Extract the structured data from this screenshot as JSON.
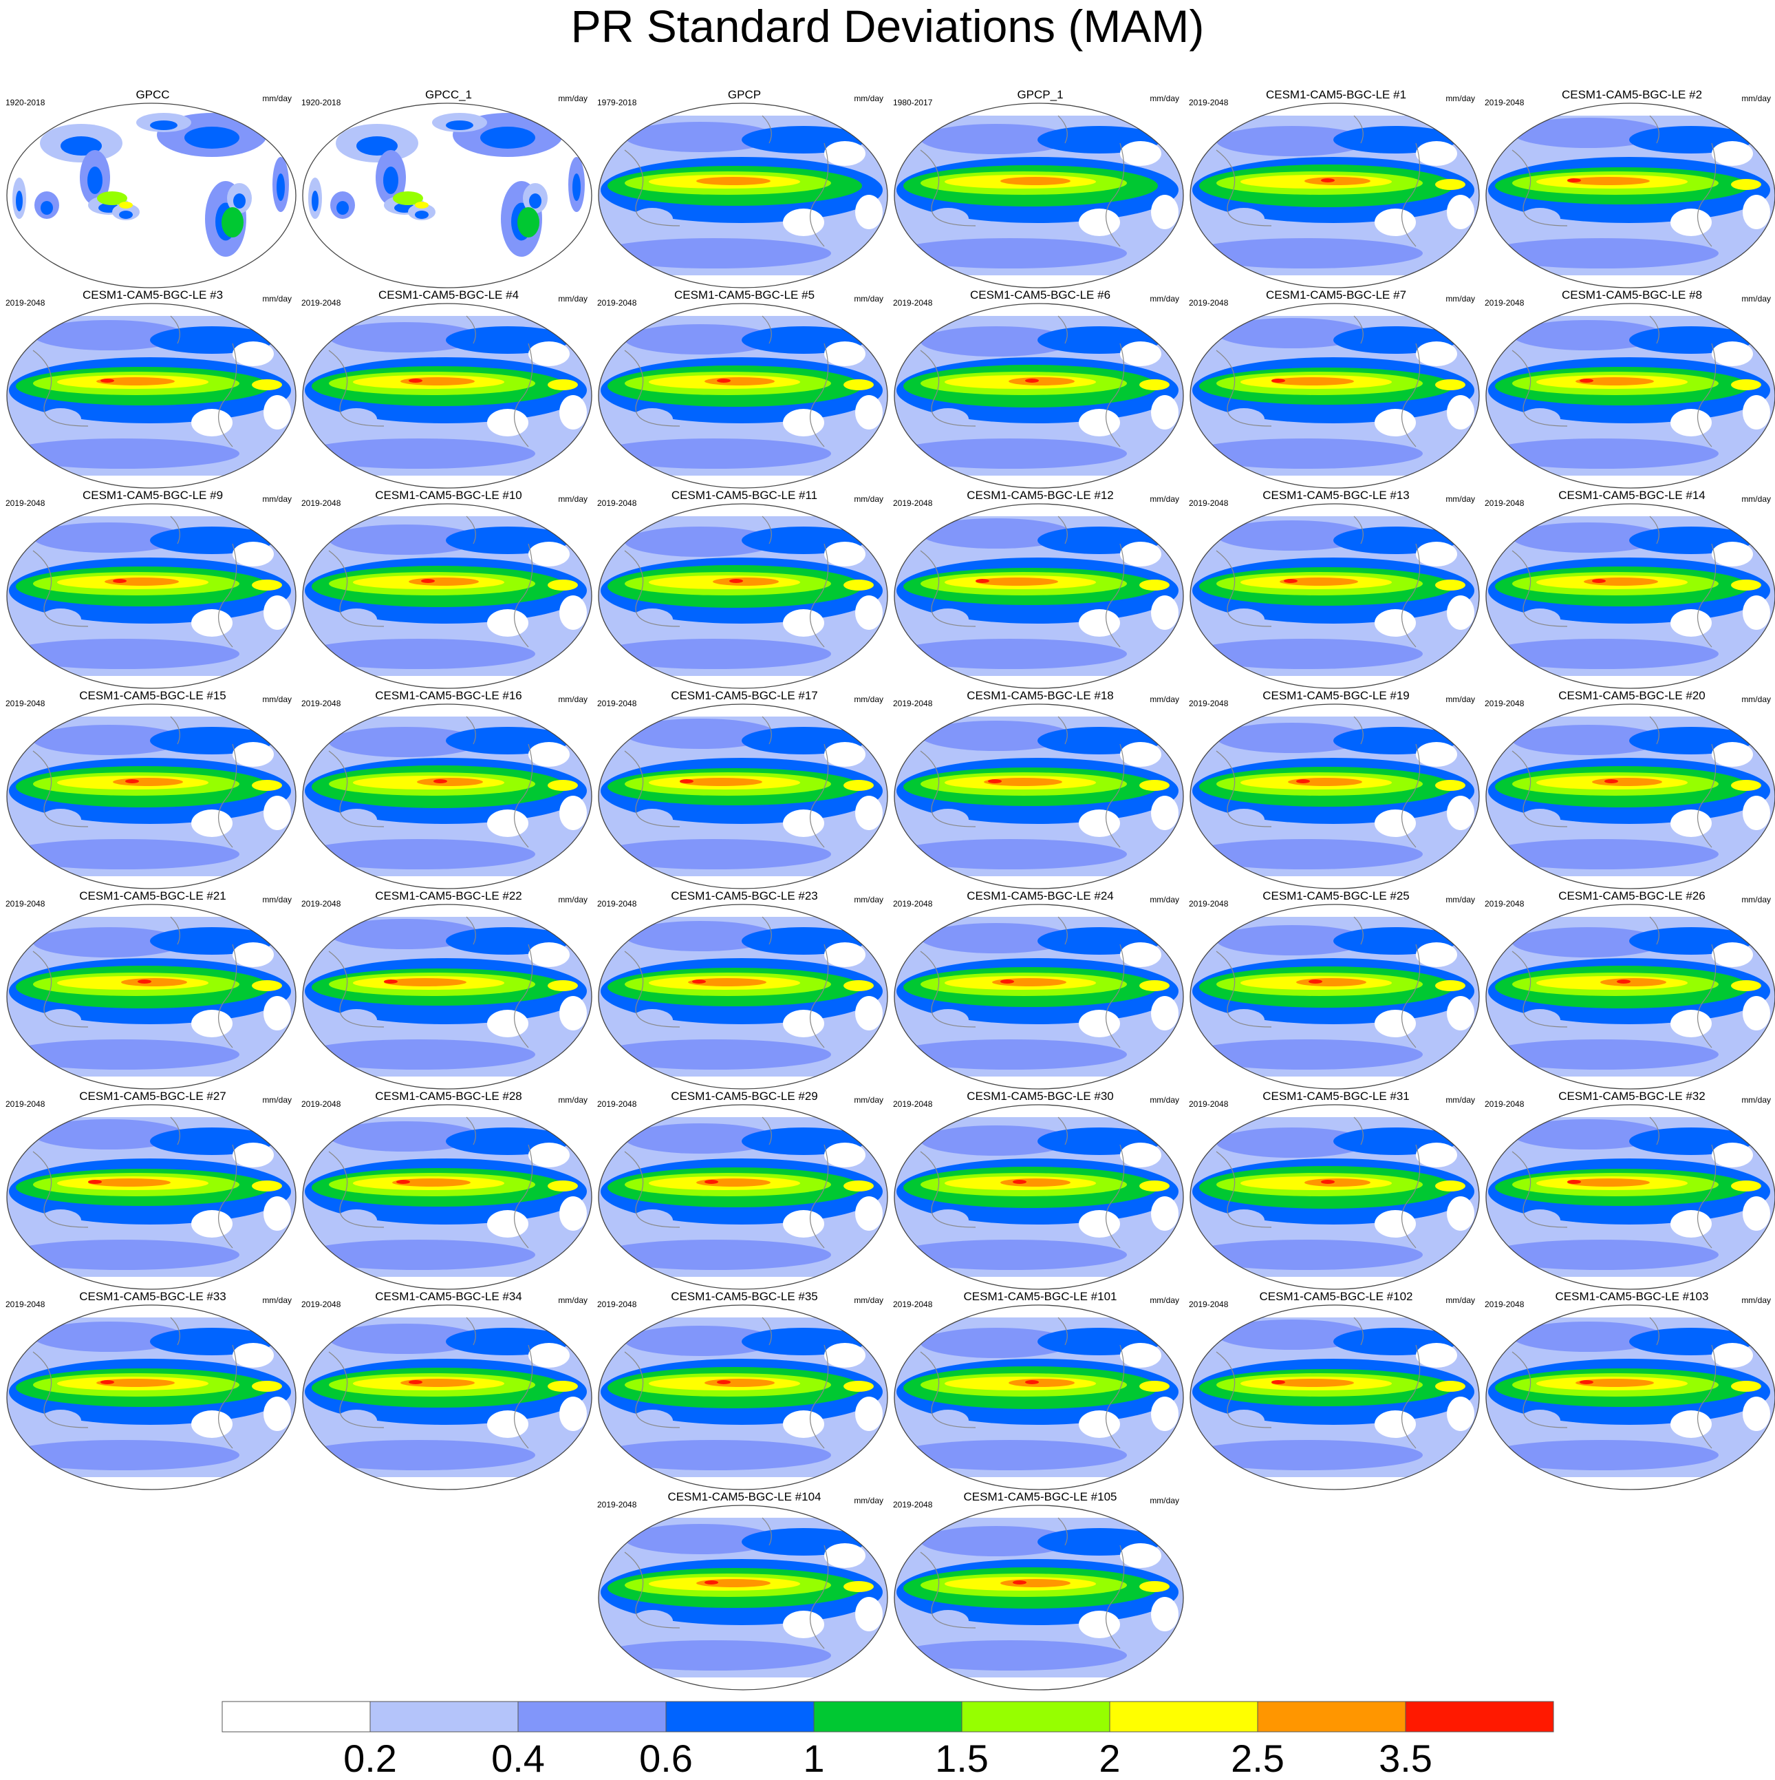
{
  "title": "PR Standard Deviations (MAM)",
  "units": "mm/day",
  "colorbar": {
    "levels": [
      "0.2",
      "0.4",
      "0.6",
      "1",
      "1.5",
      "2",
      "2.5",
      "3.5"
    ],
    "colors": [
      "#ffffff",
      "#b4c4fa",
      "#8196fa",
      "#0064ff",
      "#00c832",
      "#96ff00",
      "#ffff00",
      "#ff9600",
      "#ff1900"
    ]
  },
  "panels": [
    {
      "name": "GPCC",
      "period": "1920-2018",
      "kind": "obs_land"
    },
    {
      "name": "GPCC_1",
      "period": "1920-2018",
      "kind": "obs_land"
    },
    {
      "name": "GPCP",
      "period": "1979-2018",
      "kind": "obs"
    },
    {
      "name": "GPCP_1",
      "period": "1980-2017",
      "kind": "obs"
    },
    {
      "name": "CESM1-CAM5-BGC-LE #1",
      "period": "2019-2048",
      "kind": "model"
    },
    {
      "name": "CESM1-CAM5-BGC-LE #2",
      "period": "2019-2048",
      "kind": "model"
    },
    {
      "name": "CESM1-CAM5-BGC-LE #3",
      "period": "2019-2048",
      "kind": "model"
    },
    {
      "name": "CESM1-CAM5-BGC-LE #4",
      "period": "2019-2048",
      "kind": "model"
    },
    {
      "name": "CESM1-CAM5-BGC-LE #5",
      "period": "2019-2048",
      "kind": "model"
    },
    {
      "name": "CESM1-CAM5-BGC-LE #6",
      "period": "2019-2048",
      "kind": "model"
    },
    {
      "name": "CESM1-CAM5-BGC-LE #7",
      "period": "2019-2048",
      "kind": "model"
    },
    {
      "name": "CESM1-CAM5-BGC-LE #8",
      "period": "2019-2048",
      "kind": "model"
    },
    {
      "name": "CESM1-CAM5-BGC-LE #9",
      "period": "2019-2048",
      "kind": "model"
    },
    {
      "name": "CESM1-CAM5-BGC-LE #10",
      "period": "2019-2048",
      "kind": "model"
    },
    {
      "name": "CESM1-CAM5-BGC-LE #11",
      "period": "2019-2048",
      "kind": "model"
    },
    {
      "name": "CESM1-CAM5-BGC-LE #12",
      "period": "2019-2048",
      "kind": "model"
    },
    {
      "name": "CESM1-CAM5-BGC-LE #13",
      "period": "2019-2048",
      "kind": "model"
    },
    {
      "name": "CESM1-CAM5-BGC-LE #14",
      "period": "2019-2048",
      "kind": "model"
    },
    {
      "name": "CESM1-CAM5-BGC-LE #15",
      "period": "2019-2048",
      "kind": "model"
    },
    {
      "name": "CESM1-CAM5-BGC-LE #16",
      "period": "2019-2048",
      "kind": "model"
    },
    {
      "name": "CESM1-CAM5-BGC-LE #17",
      "period": "2019-2048",
      "kind": "model"
    },
    {
      "name": "CESM1-CAM5-BGC-LE #18",
      "period": "2019-2048",
      "kind": "model"
    },
    {
      "name": "CESM1-CAM5-BGC-LE #19",
      "period": "2019-2048",
      "kind": "model"
    },
    {
      "name": "CESM1-CAM5-BGC-LE #20",
      "period": "2019-2048",
      "kind": "model"
    },
    {
      "name": "CESM1-CAM5-BGC-LE #21",
      "period": "2019-2048",
      "kind": "model"
    },
    {
      "name": "CESM1-CAM5-BGC-LE #22",
      "period": "2019-2048",
      "kind": "model"
    },
    {
      "name": "CESM1-CAM5-BGC-LE #23",
      "period": "2019-2048",
      "kind": "model"
    },
    {
      "name": "CESM1-CAM5-BGC-LE #24",
      "period": "2019-2048",
      "kind": "model"
    },
    {
      "name": "CESM1-CAM5-BGC-LE #25",
      "period": "2019-2048",
      "kind": "model"
    },
    {
      "name": "CESM1-CAM5-BGC-LE #26",
      "period": "2019-2048",
      "kind": "model"
    },
    {
      "name": "CESM1-CAM5-BGC-LE #27",
      "period": "2019-2048",
      "kind": "model"
    },
    {
      "name": "CESM1-CAM5-BGC-LE #28",
      "period": "2019-2048",
      "kind": "model"
    },
    {
      "name": "CESM1-CAM5-BGC-LE #29",
      "period": "2019-2048",
      "kind": "model"
    },
    {
      "name": "CESM1-CAM5-BGC-LE #30",
      "period": "2019-2048",
      "kind": "model"
    },
    {
      "name": "CESM1-CAM5-BGC-LE #31",
      "period": "2019-2048",
      "kind": "model"
    },
    {
      "name": "CESM1-CAM5-BGC-LE #32",
      "period": "2019-2048",
      "kind": "model"
    },
    {
      "name": "CESM1-CAM5-BGC-LE #33",
      "period": "2019-2048",
      "kind": "model"
    },
    {
      "name": "CESM1-CAM5-BGC-LE #34",
      "period": "2019-2048",
      "kind": "model"
    },
    {
      "name": "CESM1-CAM5-BGC-LE #35",
      "period": "2019-2048",
      "kind": "model"
    },
    {
      "name": "CESM1-CAM5-BGC-LE #101",
      "period": "2019-2048",
      "kind": "model"
    },
    {
      "name": "CESM1-CAM5-BGC-LE #102",
      "period": "2019-2048",
      "kind": "model"
    },
    {
      "name": "CESM1-CAM5-BGC-LE #103",
      "period": "2019-2048",
      "kind": "model"
    },
    {
      "name": "CESM1-CAM5-BGC-LE #104",
      "period": "2019-2048",
      "kind": "model"
    },
    {
      "name": "CESM1-CAM5-BGC-LE #105",
      "period": "2019-2048",
      "kind": "model"
    }
  ]
}
